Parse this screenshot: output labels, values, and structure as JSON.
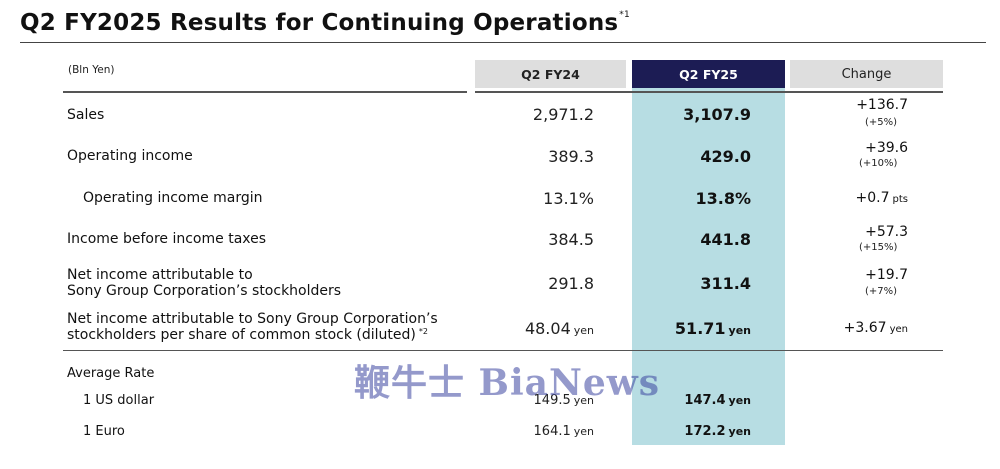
{
  "title": "Q2 FY2025 Results for Continuing Operations",
  "title_note": "*1",
  "unit": "(Bln Yen)",
  "headers": {
    "prev": "Q2 FY24",
    "curr": "Q2 FY25",
    "change": "Change"
  },
  "rows": {
    "sales": {
      "label": "Sales",
      "prev": "2,971.2",
      "curr": "3,107.9",
      "change": "+136.7",
      "change_pct": "(+5%)"
    },
    "op_income": {
      "label": "Operating income",
      "prev": "389.3",
      "curr": "429.0",
      "change": "+39.6",
      "change_pct": "(+10%)"
    },
    "op_margin": {
      "label": "Operating income margin",
      "prev": "13.1%",
      "curr": "13.8%",
      "change": "+0.7",
      "change_unit": "pts"
    },
    "pretax": {
      "label": "Income before income taxes",
      "prev": "384.5",
      "curr": "441.8",
      "change": "+57.3",
      "change_pct": "(+15%)"
    },
    "net_income": {
      "label_line1": "Net income attributable to",
      "label_line2": "Sony Group Corporation’s stockholders",
      "prev": "291.8",
      "curr": "311.4",
      "change": "+19.7",
      "change_pct": "(+7%)"
    },
    "eps": {
      "label_line1": "Net income attributable to Sony Group Corporation’s",
      "label_line2": "stockholders per share of common stock (diluted)",
      "label_note": "*2",
      "prev": "48.04",
      "curr": "51.71",
      "change": "+3.67",
      "unit": "yen"
    }
  },
  "rates": {
    "heading": "Average Rate",
    "usd": {
      "label": "1 US dollar",
      "prev": "149.5",
      "curr": "147.4",
      "unit": "yen"
    },
    "eur": {
      "label": "1 Euro",
      "prev": "164.1",
      "curr": "172.2",
      "unit": "yen"
    }
  },
  "watermark": "鞭牛士 BiaNews"
}
